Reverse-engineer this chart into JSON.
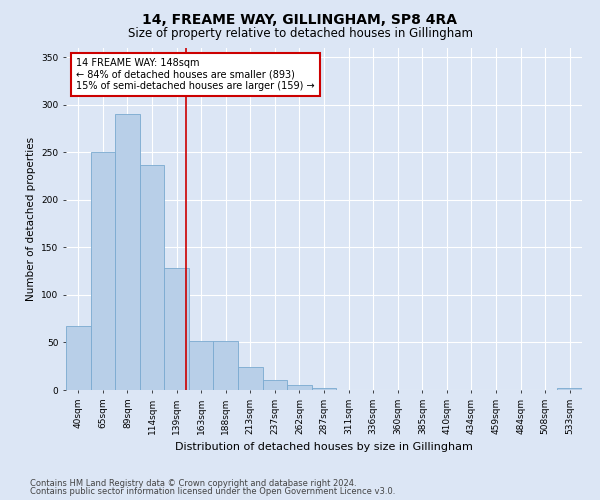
{
  "title": "14, FREAME WAY, GILLINGHAM, SP8 4RA",
  "subtitle": "Size of property relative to detached houses in Gillingham",
  "xlabel": "Distribution of detached houses by size in Gillingham",
  "ylabel": "Number of detached properties",
  "footnote1": "Contains HM Land Registry data © Crown copyright and database right 2024.",
  "footnote2": "Contains public sector information licensed under the Open Government Licence v3.0.",
  "bar_labels": [
    "40sqm",
    "65sqm",
    "89sqm",
    "114sqm",
    "139sqm",
    "163sqm",
    "188sqm",
    "213sqm",
    "237sqm",
    "262sqm",
    "287sqm",
    "311sqm",
    "336sqm",
    "360sqm",
    "385sqm",
    "410sqm",
    "434sqm",
    "459sqm",
    "484sqm",
    "508sqm",
    "533sqm"
  ],
  "bar_values": [
    67,
    250,
    290,
    236,
    128,
    52,
    52,
    24,
    11,
    5,
    2,
    0,
    0,
    0,
    0,
    0,
    0,
    0,
    0,
    0,
    2
  ],
  "bar_color": "#b8cfe8",
  "bar_edge_color": "#7aaad0",
  "vline_color": "#cc0000",
  "vline_pos": 4.37,
  "annotation_title": "14 FREAME WAY: 148sqm",
  "annotation_line1": "← 84% of detached houses are smaller (893)",
  "annotation_line2": "15% of semi-detached houses are larger (159) →",
  "annotation_box_facecolor": "#ffffff",
  "annotation_box_edgecolor": "#cc0000",
  "ylim": [
    0,
    360
  ],
  "yticks": [
    0,
    50,
    100,
    150,
    200,
    250,
    300,
    350
  ],
  "background_color": "#dce6f5",
  "plot_bg_color": "#dce6f5",
  "title_fontsize": 10,
  "subtitle_fontsize": 8.5,
  "xlabel_fontsize": 8,
  "ylabel_fontsize": 7.5,
  "tick_fontsize": 6.5,
  "annot_fontsize": 7,
  "footnote_fontsize": 6
}
